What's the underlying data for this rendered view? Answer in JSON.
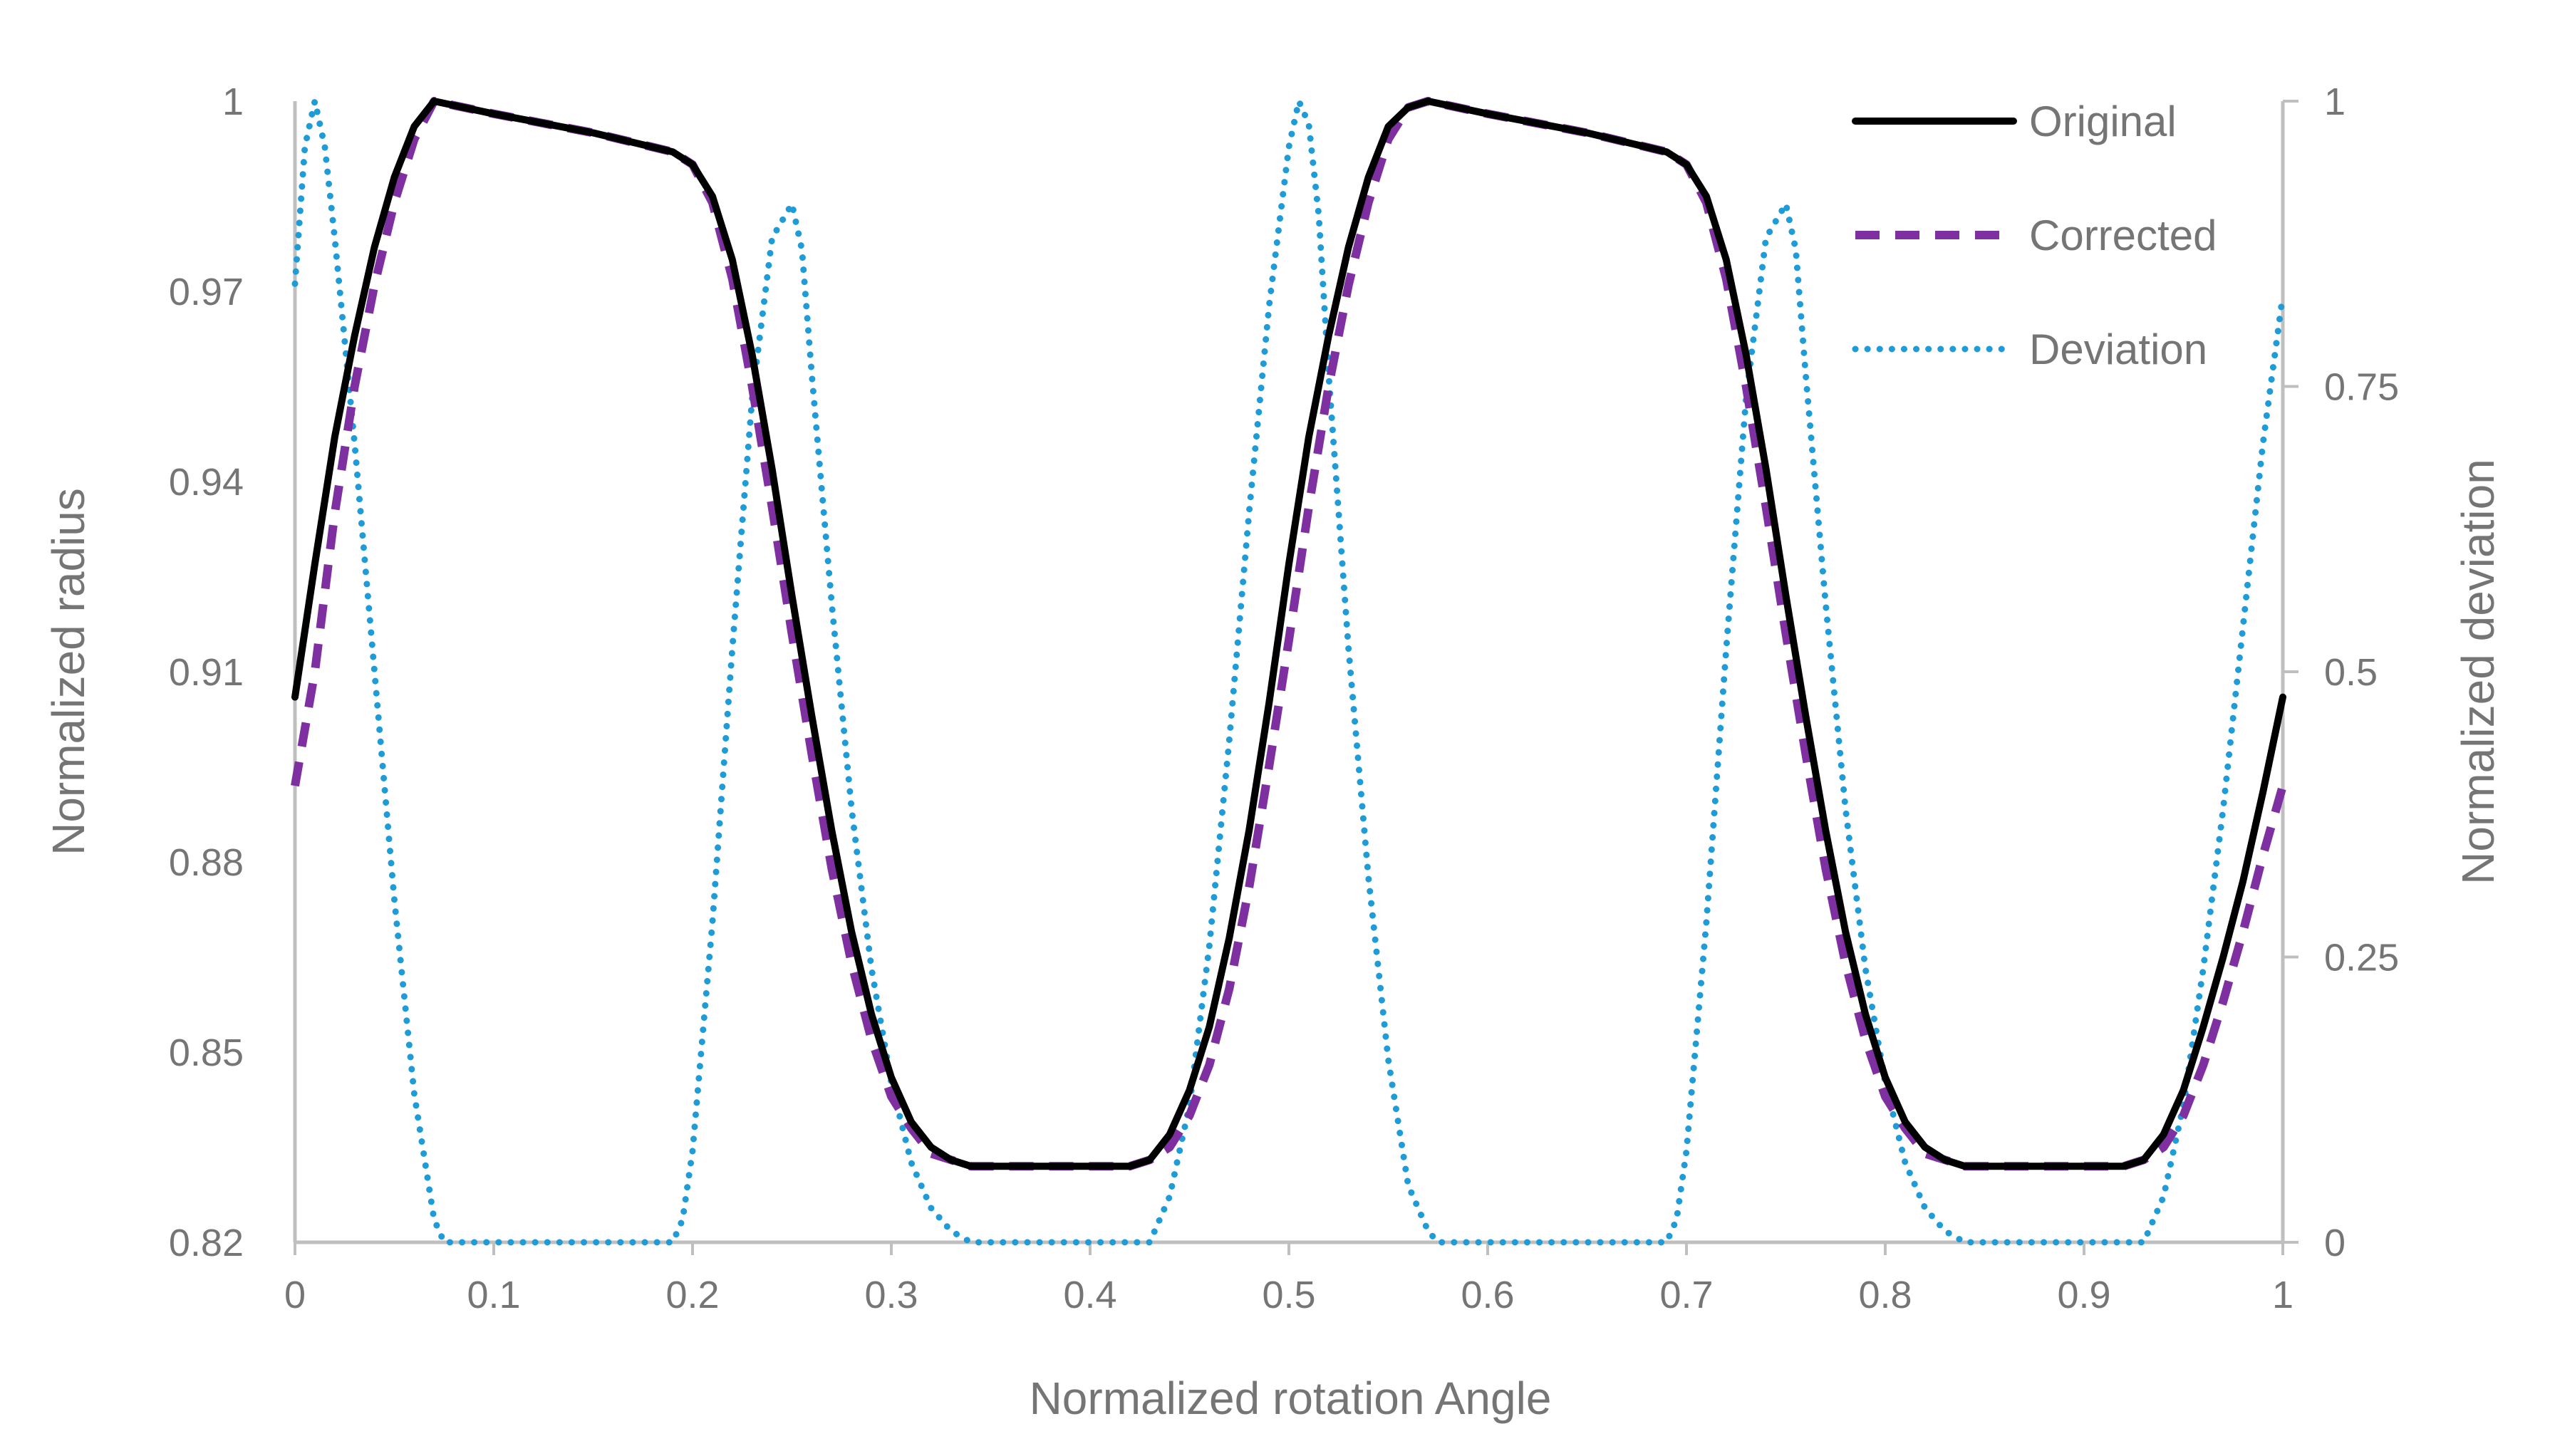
{
  "chart_data": {
    "type": "line",
    "title": "",
    "xlabel": "Normalized rotation Angle",
    "ylabel": "Normalized radius",
    "y2label": "Normalized deviation",
    "xlim": [
      0,
      1
    ],
    "ylim": [
      0.82,
      1
    ],
    "y2lim": [
      0,
      1
    ],
    "x_ticks": [
      0,
      0.1,
      0.2,
      0.3,
      0.4,
      0.5,
      0.6,
      0.7,
      0.8,
      0.9,
      1
    ],
    "x_tick_labels": [
      "0",
      "0.1",
      "0.2",
      "0.3",
      "0.4",
      "0.5",
      "0.6",
      "0.7",
      "0.8",
      "0.9",
      "1"
    ],
    "y_ticks": [
      0.82,
      0.85,
      0.88,
      0.91,
      0.94,
      0.97,
      1
    ],
    "y_tick_labels": [
      "0.82",
      "0.85",
      "0.88",
      "0.91",
      "0.94",
      "0.97",
      "1"
    ],
    "y2_ticks": [
      0,
      0.25,
      0.5,
      0.75,
      1
    ],
    "y2_tick_labels": [
      "0",
      "0.25",
      "0.5",
      "0.75",
      "1"
    ],
    "grid": false,
    "legend_position": "top-right",
    "series": [
      {
        "name": "Original",
        "axis": "left",
        "color": "#000000",
        "style": "solid",
        "x": [
          0,
          0.01,
          0.02,
          0.03,
          0.04,
          0.05,
          0.06,
          0.07,
          0.1,
          0.15,
          0.19,
          0.2,
          0.21,
          0.22,
          0.23,
          0.24,
          0.25,
          0.26,
          0.27,
          0.28,
          0.29,
          0.3,
          0.31,
          0.32,
          0.33,
          0.34,
          0.35,
          0.42,
          0.43,
          0.44,
          0.45,
          0.46,
          0.47,
          0.48,
          0.49,
          0.5,
          0.51,
          0.52,
          0.53,
          0.54,
          0.55,
          0.56,
          0.57,
          0.6,
          0.65,
          0.69,
          0.7,
          0.71,
          0.72,
          0.73,
          0.74,
          0.75,
          0.76,
          0.77,
          0.78,
          0.79,
          0.8,
          0.81,
          0.82,
          0.83,
          0.84,
          0.85,
          0.92,
          0.93,
          0.94,
          0.95,
          0.96,
          0.97,
          0.98,
          0.99,
          1
        ],
        "values": [
          0.906,
          0.927,
          0.947,
          0.963,
          0.977,
          0.988,
          0.996,
          1.0,
          0.998,
          0.995,
          0.992,
          0.99,
          0.985,
          0.975,
          0.96,
          0.942,
          0.922,
          0.903,
          0.885,
          0.869,
          0.856,
          0.846,
          0.839,
          0.835,
          0.833,
          0.832,
          0.832,
          0.832,
          0.833,
          0.837,
          0.844,
          0.854,
          0.868,
          0.885,
          0.905,
          0.927,
          0.947,
          0.963,
          0.977,
          0.988,
          0.996,
          0.999,
          1.0,
          0.998,
          0.995,
          0.992,
          0.99,
          0.985,
          0.975,
          0.96,
          0.942,
          0.922,
          0.903,
          0.885,
          0.869,
          0.856,
          0.846,
          0.839,
          0.835,
          0.833,
          0.832,
          0.832,
          0.832,
          0.833,
          0.837,
          0.844,
          0.854,
          0.865,
          0.877,
          0.891,
          0.906
        ]
      },
      {
        "name": "Corrected",
        "axis": "left",
        "color": "#7f30a0",
        "style": "dashed",
        "x": [
          0,
          0.01,
          0.02,
          0.03,
          0.04,
          0.05,
          0.06,
          0.07,
          0.1,
          0.15,
          0.19,
          0.2,
          0.21,
          0.22,
          0.23,
          0.24,
          0.25,
          0.26,
          0.27,
          0.28,
          0.29,
          0.3,
          0.31,
          0.32,
          0.33,
          0.34,
          0.35,
          0.42,
          0.43,
          0.44,
          0.45,
          0.46,
          0.47,
          0.48,
          0.49,
          0.5,
          0.51,
          0.52,
          0.53,
          0.54,
          0.55,
          0.56,
          0.57,
          0.6,
          0.65,
          0.69,
          0.7,
          0.71,
          0.72,
          0.73,
          0.74,
          0.75,
          0.76,
          0.77,
          0.78,
          0.79,
          0.8,
          0.81,
          0.82,
          0.83,
          0.84,
          0.85,
          0.92,
          0.93,
          0.94,
          0.95,
          0.96,
          0.97,
          0.98,
          0.99,
          1
        ],
        "values": [
          0.892,
          0.91,
          0.935,
          0.955,
          0.971,
          0.984,
          0.994,
          1.0,
          0.998,
          0.995,
          0.992,
          0.99,
          0.984,
          0.972,
          0.955,
          0.936,
          0.916,
          0.897,
          0.879,
          0.864,
          0.852,
          0.843,
          0.838,
          0.834,
          0.833,
          0.832,
          0.832,
          0.832,
          0.833,
          0.835,
          0.84,
          0.848,
          0.86,
          0.876,
          0.895,
          0.915,
          0.936,
          0.955,
          0.971,
          0.984,
          0.994,
          0.999,
          1.0,
          0.998,
          0.995,
          0.992,
          0.99,
          0.984,
          0.972,
          0.955,
          0.936,
          0.916,
          0.897,
          0.879,
          0.864,
          0.852,
          0.843,
          0.838,
          0.834,
          0.833,
          0.832,
          0.832,
          0.832,
          0.833,
          0.835,
          0.84,
          0.848,
          0.858,
          0.869,
          0.881,
          0.892
        ]
      },
      {
        "name": "Deviation",
        "axis": "right",
        "color": "#1f9bd7",
        "style": "dotted",
        "x": [
          0,
          0.005,
          0.01,
          0.015,
          0.02,
          0.03,
          0.04,
          0.05,
          0.06,
          0.07,
          0.075,
          0.19,
          0.195,
          0.2,
          0.21,
          0.22,
          0.23,
          0.24,
          0.25,
          0.255,
          0.26,
          0.27,
          0.28,
          0.29,
          0.3,
          0.31,
          0.32,
          0.33,
          0.34,
          0.43,
          0.44,
          0.45,
          0.46,
          0.47,
          0.48,
          0.49,
          0.5,
          0.505,
          0.51,
          0.515,
          0.52,
          0.53,
          0.54,
          0.55,
          0.56,
          0.57,
          0.575,
          0.69,
          0.695,
          0.7,
          0.71,
          0.72,
          0.73,
          0.74,
          0.75,
          0.755,
          0.76,
          0.77,
          0.78,
          0.79,
          0.8,
          0.81,
          0.82,
          0.83,
          0.84,
          0.93,
          0.94,
          0.95,
          0.96,
          0.97,
          0.98,
          0.99,
          1
        ],
        "values": [
          0.84,
          0.96,
          1.0,
          0.96,
          0.88,
          0.7,
          0.5,
          0.3,
          0.13,
          0.02,
          0.0,
          0.0,
          0.02,
          0.08,
          0.28,
          0.52,
          0.74,
          0.88,
          0.91,
          0.87,
          0.76,
          0.56,
          0.38,
          0.24,
          0.14,
          0.07,
          0.03,
          0.01,
          0.0,
          0.0,
          0.04,
          0.12,
          0.26,
          0.44,
          0.64,
          0.82,
          0.96,
          1.0,
          0.98,
          0.9,
          0.76,
          0.52,
          0.32,
          0.16,
          0.05,
          0.01,
          0.0,
          0.0,
          0.02,
          0.08,
          0.28,
          0.52,
          0.74,
          0.88,
          0.91,
          0.87,
          0.76,
          0.56,
          0.38,
          0.24,
          0.14,
          0.07,
          0.03,
          0.01,
          0.0,
          0.0,
          0.04,
          0.12,
          0.24,
          0.38,
          0.54,
          0.7,
          0.83
        ]
      }
    ]
  }
}
